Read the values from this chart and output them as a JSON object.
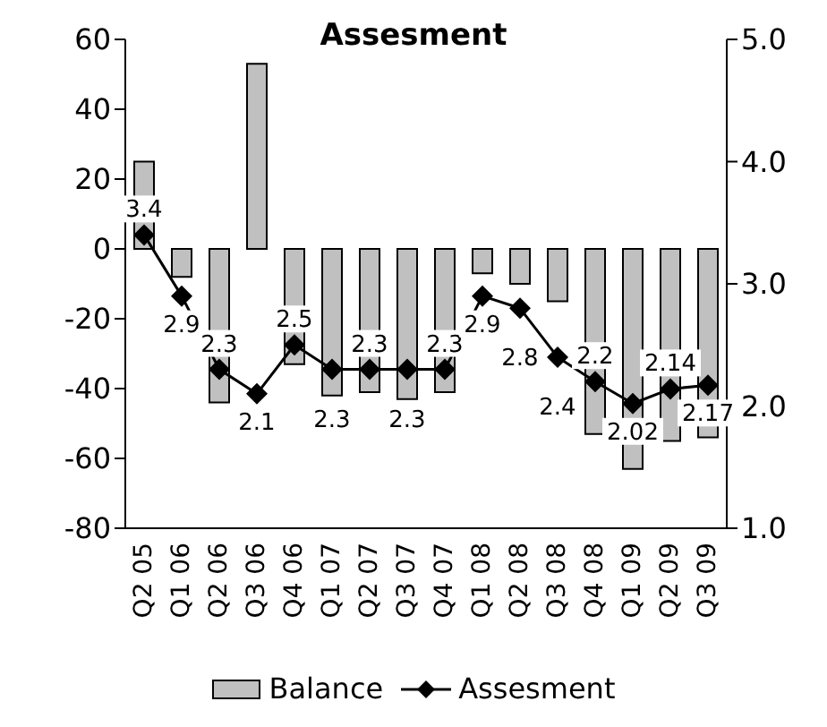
{
  "chart_data": {
    "type": "bar",
    "title": "Assesment",
    "categories": [
      "Q2 05",
      "Q1 06",
      "Q2 06",
      "Q3 06",
      "Q4 06",
      "Q1 07",
      "Q2 07",
      "Q3 07",
      "Q4 07",
      "Q1 08",
      "Q2 08",
      "Q3 08",
      "Q4 08",
      "Q1 09",
      "Q2 09",
      "Q3 09"
    ],
    "series": [
      {
        "name": "Balance",
        "type": "bar",
        "color": "#c0c0c0",
        "values": [
          25,
          -8,
          -44,
          53,
          -33,
          -42,
          -41,
          -43,
          -41,
          -7,
          -10,
          -15,
          -53,
          -63,
          -55,
          -54
        ]
      },
      {
        "name": "Assesment",
        "type": "line",
        "axis": "y2",
        "color": "#000000",
        "marker": "diamond",
        "values": [
          3.4,
          2.9,
          2.3,
          2.1,
          2.5,
          2.3,
          2.3,
          2.3,
          2.3,
          2.9,
          2.8,
          2.4,
          2.2,
          2.02,
          2.14,
          2.17
        ],
        "value_labels": [
          "3.4",
          "2.9",
          "2.3",
          "2.1",
          "2.5",
          "2.3",
          "2.3",
          "2.3",
          "2.3",
          "2.9",
          "2.8",
          "2.4",
          "2.2",
          "2.02",
          "2.14",
          "2.17"
        ]
      }
    ],
    "ylim": [
      -80,
      60
    ],
    "yticks": [
      -80,
      -60,
      -40,
      -20,
      0,
      20,
      40,
      60
    ],
    "y2lim": [
      1,
      5
    ],
    "y2ticks": [
      {
        "value": 1,
        "label": "1.0"
      },
      {
        "value": 2,
        "label": "2.0"
      },
      {
        "value": 3,
        "label": "3.0"
      },
      {
        "value": 4,
        "label": "4.0"
      },
      {
        "value": 5,
        "label": "5.0"
      }
    ],
    "legend": "bottom",
    "grid": false
  }
}
